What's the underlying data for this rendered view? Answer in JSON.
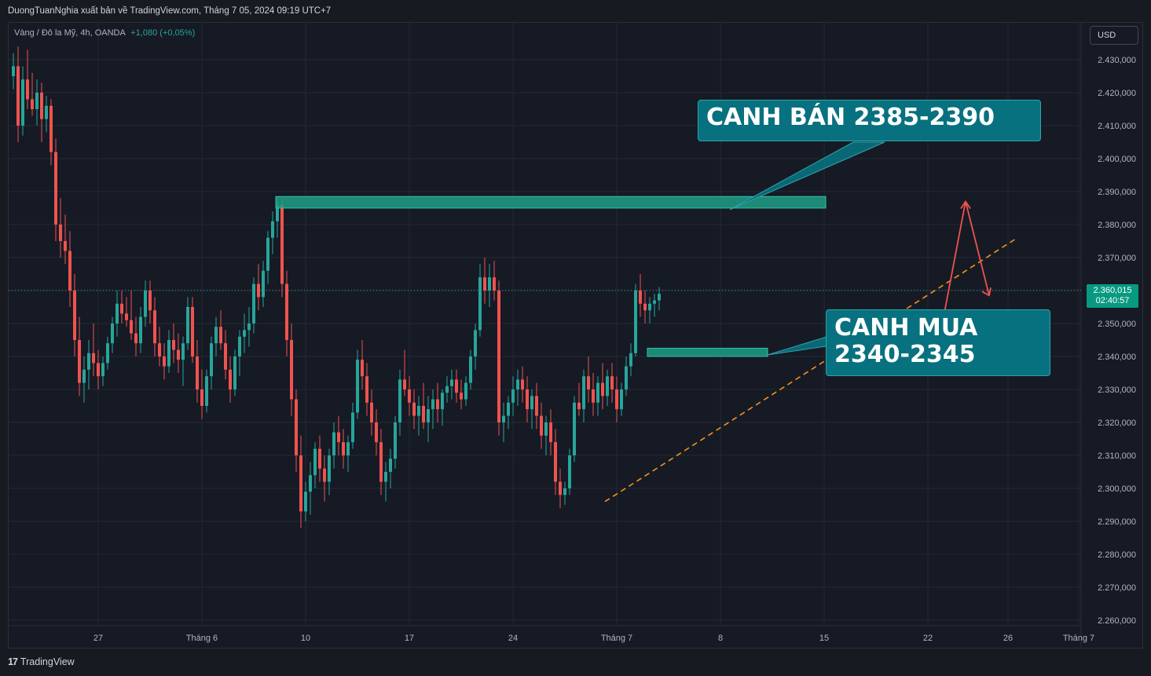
{
  "header": {
    "publish_text": "DuongTuanNghia xuất bản về TradingView.com, Tháng 7 05, 2024 09:19 UTC+7"
  },
  "legend": {
    "symbol": "Vàng / Đô la Mỹ, 4h, OANDA",
    "change": "+1,080 (+0,05%)"
  },
  "currency_button": "USD",
  "price_tag": {
    "price": "2.360,015",
    "countdown": "02:40:57"
  },
  "footer": {
    "brand": "TradingView",
    "glyph": "17"
  },
  "annotations": {
    "sell_label": "CANH BÁN 2385-2390",
    "buy_label_line1": "CANH MUA",
    "buy_label_line2": "2340-2345"
  },
  "colors": {
    "up": "#26a69a",
    "down": "#ef5350",
    "zone": "#1e9e86",
    "label_bg": "#08717f",
    "trend": "#f7931a",
    "arrow": "#ef5350"
  },
  "chart_data": {
    "type": "candlestick",
    "symbol": "XAU/USD",
    "timeframe": "4h",
    "broker": "OANDA",
    "ylim": [
      2255,
      2435
    ],
    "current_price": 2360.015,
    "y_ticks": [
      "2.430,000",
      "2.420,000",
      "2.410,000",
      "2.400,000",
      "2.390,000",
      "2.380,000",
      "2.370,000",
      "2.360,000",
      "2.350,000",
      "2.340,000",
      "2.330,000",
      "2.320,000",
      "2.310,000",
      "2.300,000",
      "2.290,000",
      "2.280,000",
      "2.270,000",
      "2.260,000"
    ],
    "y_tick_values": [
      2430,
      2420,
      2410,
      2400,
      2390,
      2380,
      2370,
      2360,
      2350,
      2340,
      2330,
      2320,
      2310,
      2300,
      2290,
      2280,
      2270,
      2260
    ],
    "x_ticks": [
      "27",
      "Tháng 6",
      "10",
      "17",
      "24",
      "Tháng 7",
      "8",
      "15",
      "22",
      "26",
      "Tháng 7"
    ],
    "x_tick_bar": [
      18,
      40,
      62,
      84,
      106,
      128,
      150,
      172,
      194,
      211,
      226
    ],
    "bar_count_total": 230,
    "candles": [
      [
        2425,
        2432,
        2421,
        2428
      ],
      [
        2428,
        2434,
        2405,
        2410
      ],
      [
        2410,
        2428,
        2407,
        2424
      ],
      [
        2424,
        2433,
        2415,
        2418
      ],
      [
        2418,
        2426,
        2413,
        2415
      ],
      [
        2415,
        2424,
        2410,
        2420
      ],
      [
        2420,
        2423,
        2405,
        2412
      ],
      [
        2412,
        2419,
        2408,
        2416
      ],
      [
        2416,
        2418,
        2398,
        2402
      ],
      [
        2402,
        2406,
        2375,
        2380
      ],
      [
        2380,
        2388,
        2370,
        2375
      ],
      [
        2375,
        2383,
        2368,
        2372
      ],
      [
        2372,
        2378,
        2355,
        2360
      ],
      [
        2360,
        2365,
        2340,
        2345
      ],
      [
        2345,
        2352,
        2328,
        2332
      ],
      [
        2332,
        2340,
        2326,
        2336
      ],
      [
        2336,
        2345,
        2330,
        2341
      ],
      [
        2341,
        2350,
        2334,
        2338
      ],
      [
        2338,
        2342,
        2330,
        2334
      ],
      [
        2334,
        2340,
        2331,
        2338
      ],
      [
        2338,
        2346,
        2336,
        2344
      ],
      [
        2344,
        2352,
        2341,
        2350
      ],
      [
        2350,
        2360,
        2346,
        2356
      ],
      [
        2356,
        2360,
        2350,
        2353
      ],
      [
        2353,
        2358,
        2349,
        2351
      ],
      [
        2351,
        2360,
        2345,
        2347
      ],
      [
        2347,
        2352,
        2340,
        2344
      ],
      [
        2344,
        2355,
        2341,
        2352
      ],
      [
        2352,
        2363,
        2349,
        2360
      ],
      [
        2360,
        2363,
        2350,
        2354
      ],
      [
        2354,
        2358,
        2340,
        2344
      ],
      [
        2344,
        2349,
        2337,
        2340
      ],
      [
        2340,
        2344,
        2333,
        2337
      ],
      [
        2337,
        2348,
        2335,
        2345
      ],
      [
        2345,
        2350,
        2338,
        2342
      ],
      [
        2342,
        2347,
        2335,
        2339
      ],
      [
        2339,
        2346,
        2331,
        2344
      ],
      [
        2344,
        2358,
        2342,
        2355
      ],
      [
        2355,
        2358,
        2338,
        2340
      ],
      [
        2340,
        2345,
        2326,
        2330
      ],
      [
        2330,
        2336,
        2321,
        2325
      ],
      [
        2325,
        2336,
        2323,
        2334
      ],
      [
        2334,
        2346,
        2330,
        2344
      ],
      [
        2344,
        2352,
        2340,
        2349
      ],
      [
        2349,
        2354,
        2342,
        2344
      ],
      [
        2344,
        2348,
        2333,
        2336
      ],
      [
        2336,
        2340,
        2326,
        2330
      ],
      [
        2330,
        2342,
        2328,
        2340
      ],
      [
        2340,
        2348,
        2334,
        2346
      ],
      [
        2346,
        2353,
        2341,
        2348
      ],
      [
        2348,
        2355,
        2343,
        2350
      ],
      [
        2350,
        2364,
        2347,
        2362
      ],
      [
        2362,
        2368,
        2354,
        2358
      ],
      [
        2358,
        2369,
        2355,
        2366
      ],
      [
        2366,
        2378,
        2362,
        2376
      ],
      [
        2376,
        2384,
        2371,
        2381
      ],
      [
        2381,
        2388,
        2376,
        2386
      ],
      [
        2386,
        2388,
        2358,
        2362
      ],
      [
        2362,
        2366,
        2340,
        2345
      ],
      [
        2345,
        2350,
        2322,
        2327
      ],
      [
        2327,
        2330,
        2305,
        2310
      ],
      [
        2310,
        2316,
        2288,
        2293
      ],
      [
        2293,
        2302,
        2290,
        2299
      ],
      [
        2299,
        2308,
        2292,
        2304
      ],
      [
        2304,
        2314,
        2300,
        2312
      ],
      [
        2312,
        2316,
        2302,
        2306
      ],
      [
        2306,
        2310,
        2296,
        2302
      ],
      [
        2302,
        2312,
        2298,
        2310
      ],
      [
        2310,
        2320,
        2306,
        2317
      ],
      [
        2317,
        2322,
        2310,
        2314
      ],
      [
        2314,
        2318,
        2306,
        2310
      ],
      [
        2310,
        2316,
        2305,
        2314
      ],
      [
        2314,
        2326,
        2312,
        2323
      ],
      [
        2323,
        2342,
        2321,
        2339
      ],
      [
        2339,
        2345,
        2330,
        2334
      ],
      [
        2334,
        2338,
        2322,
        2326
      ],
      [
        2326,
        2330,
        2316,
        2320
      ],
      [
        2320,
        2324,
        2310,
        2314
      ],
      [
        2314,
        2318,
        2298,
        2302
      ],
      [
        2302,
        2308,
        2296,
        2305
      ],
      [
        2305,
        2312,
        2300,
        2309
      ],
      [
        2309,
        2322,
        2306,
        2320
      ],
      [
        2320,
        2336,
        2316,
        2333
      ],
      [
        2333,
        2342,
        2328,
        2330
      ],
      [
        2330,
        2334,
        2322,
        2326
      ],
      [
        2326,
        2330,
        2318,
        2322
      ],
      [
        2322,
        2328,
        2316,
        2325
      ],
      [
        2325,
        2332,
        2318,
        2320
      ],
      [
        2320,
        2328,
        2314,
        2324
      ],
      [
        2324,
        2330,
        2318,
        2327
      ],
      [
        2327,
        2332,
        2320,
        2324
      ],
      [
        2324,
        2330,
        2319,
        2329
      ],
      [
        2329,
        2334,
        2326,
        2331
      ],
      [
        2331,
        2336,
        2327,
        2333
      ],
      [
        2333,
        2336,
        2326,
        2329
      ],
      [
        2329,
        2333,
        2324,
        2327
      ],
      [
        2327,
        2334,
        2325,
        2332
      ],
      [
        2332,
        2342,
        2330,
        2340
      ],
      [
        2340,
        2350,
        2336,
        2348
      ],
      [
        2348,
        2368,
        2346,
        2364
      ],
      [
        2364,
        2370,
        2356,
        2360
      ],
      [
        2360,
        2368,
        2355,
        2364
      ],
      [
        2364,
        2369,
        2357,
        2360
      ],
      [
        2360,
        2363,
        2316,
        2320
      ],
      [
        2320,
        2326,
        2314,
        2322
      ],
      [
        2322,
        2328,
        2318,
        2326
      ],
      [
        2326,
        2334,
        2322,
        2330
      ],
      [
        2330,
        2336,
        2325,
        2333
      ],
      [
        2333,
        2337,
        2326,
        2330
      ],
      [
        2330,
        2334,
        2320,
        2324
      ],
      [
        2324,
        2330,
        2318,
        2328
      ],
      [
        2328,
        2332,
        2318,
        2322
      ],
      [
        2322,
        2326,
        2312,
        2316
      ],
      [
        2316,
        2322,
        2310,
        2320
      ],
      [
        2320,
        2324,
        2310,
        2314
      ],
      [
        2314,
        2318,
        2298,
        2302
      ],
      [
        2302,
        2306,
        2294,
        2298
      ],
      [
        2298,
        2302,
        2295,
        2300
      ],
      [
        2300,
        2312,
        2298,
        2310
      ],
      [
        2310,
        2328,
        2308,
        2326
      ],
      [
        2326,
        2332,
        2322,
        2324
      ],
      [
        2324,
        2336,
        2320,
        2334
      ],
      [
        2334,
        2340,
        2326,
        2330
      ],
      [
        2330,
        2335,
        2322,
        2326
      ],
      [
        2326,
        2334,
        2322,
        2332
      ],
      [
        2332,
        2338,
        2324,
        2328
      ],
      [
        2328,
        2336,
        2325,
        2334
      ],
      [
        2334,
        2338,
        2326,
        2330
      ],
      [
        2330,
        2334,
        2320,
        2324
      ],
      [
        2324,
        2332,
        2322,
        2330
      ],
      [
        2330,
        2340,
        2328,
        2337
      ],
      [
        2337,
        2344,
        2334,
        2341
      ],
      [
        2341,
        2362,
        2340,
        2360
      ],
      [
        2360,
        2365,
        2352,
        2356
      ],
      [
        2356,
        2360,
        2350,
        2354
      ],
      [
        2354,
        2358,
        2350,
        2356
      ],
      [
        2356,
        2359,
        2352,
        2357
      ],
      [
        2357,
        2361,
        2354,
        2359
      ]
    ],
    "zones": [
      {
        "label": "CANH BÁN 2385-2390",
        "low": 2385,
        "high": 2388.5
      },
      {
        "label": "CANH MUA 2340-2345",
        "low": 2340,
        "high": 2342.5
      }
    ],
    "trendline": {
      "from": [
        125.5,
        2296
      ],
      "to": [
        213,
        2376
      ]
    },
    "projection": [
      [
        196,
        2342
      ],
      [
        202,
        2387
      ],
      [
        207,
        2358.5
      ]
    ]
  }
}
